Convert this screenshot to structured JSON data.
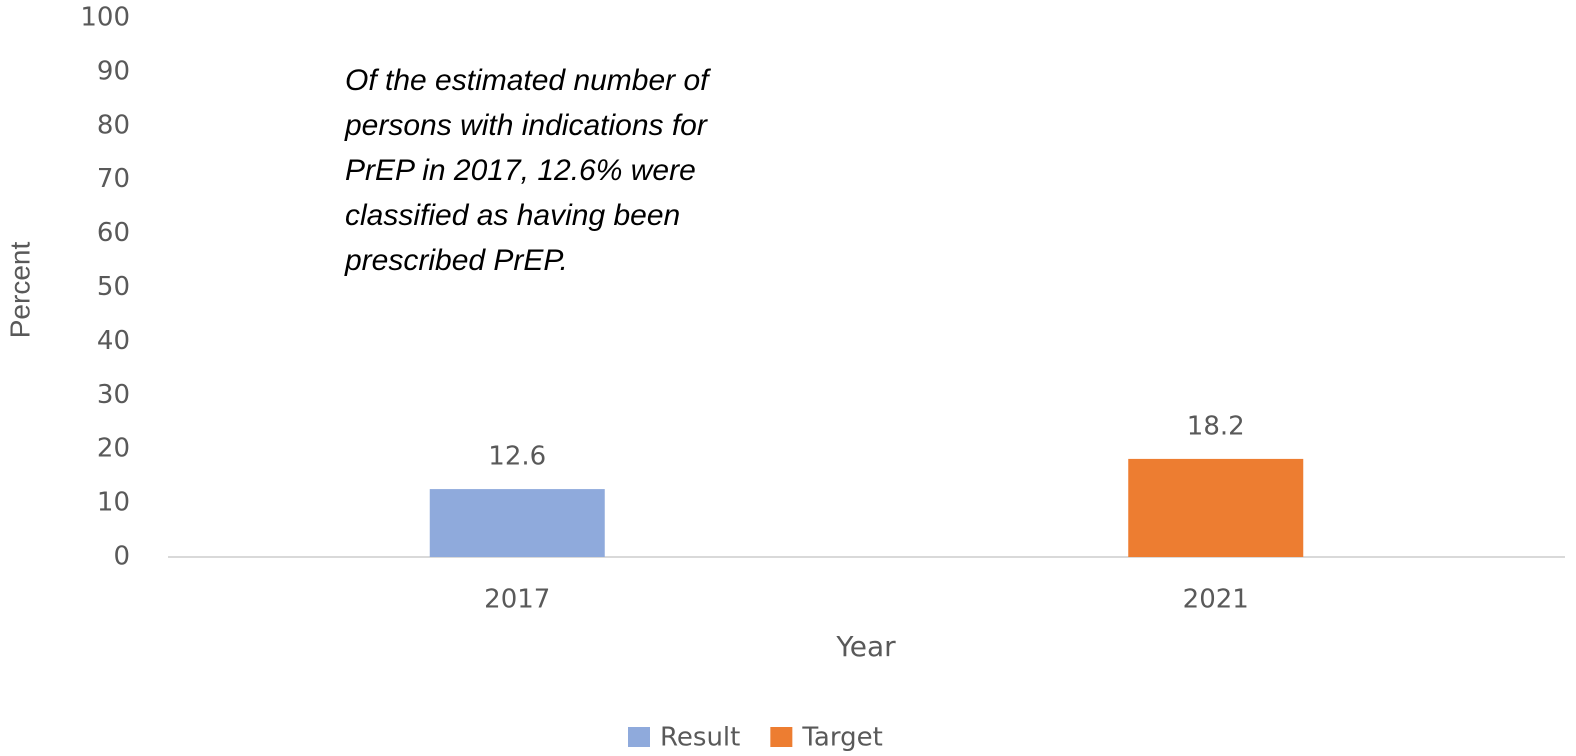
{
  "chart_data": {
    "type": "bar",
    "annotation": [
      "Of the estimated number of",
      "persons with indications for",
      "PrEP in 2017, 12.6% were",
      "classified as having been",
      "prescribed PrEP."
    ],
    "x_label": "Year",
    "y_label": "Percent",
    "categories": [
      "2017",
      "2021"
    ],
    "series": [
      {
        "name": "Result",
        "color": "#8faadc",
        "values": [
          12.6,
          null
        ]
      },
      {
        "name": "Target",
        "color": "#ed7d31",
        "values": [
          null,
          18.2
        ]
      }
    ],
    "ylim": [
      0,
      100
    ],
    "yticks": [
      0,
      10,
      20,
      30,
      40,
      50,
      60,
      70,
      80,
      90,
      100
    ],
    "grid": false,
    "legend": "bottom"
  }
}
